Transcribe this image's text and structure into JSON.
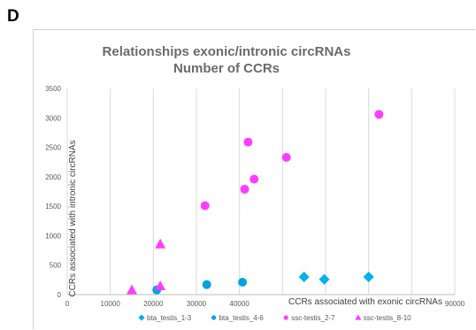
{
  "panel_label": "D",
  "chart_data": {
    "type": "scatter",
    "title": "Relationships exonic/intronic circRNAs",
    "subtitle": "Number of CCRs",
    "xlabel": "CCRs associated with exonic circRNAs",
    "ylabel": "CCRs associated with intronic circRNAs",
    "xlim": [
      0,
      90000
    ],
    "ylim": [
      0,
      3500
    ],
    "x_ticks": [
      "0",
      "10000",
      "20000",
      "30000",
      "40000",
      "90000"
    ],
    "y_ticks": [
      "0",
      "500",
      "1000",
      "1500",
      "2000",
      "2500",
      "3000",
      "3500"
    ],
    "x_tick_values": [
      0,
      10000,
      20000,
      30000,
      40000,
      90000
    ],
    "y_tick_values": [
      0,
      500,
      1000,
      1500,
      2000,
      2500,
      3000,
      3500
    ],
    "grid": "vertical",
    "legend_position": "bottom",
    "series": [
      {
        "name": "bta_testis_1-3",
        "marker": "diamond",
        "color": "#00b0f0",
        "points": [
          [
            55000,
            300
          ],
          [
            59700,
            260
          ],
          [
            70000,
            300
          ]
        ]
      },
      {
        "name": "bta_testis_4-6",
        "marker": "circle",
        "color": "#00a3e0",
        "points": [
          [
            20800,
            80
          ],
          [
            32400,
            170
          ],
          [
            40700,
            210
          ]
        ]
      },
      {
        "name": "ssc-testis_2-7",
        "marker": "circle",
        "color": "#ff3dff",
        "points": [
          [
            32000,
            1510
          ],
          [
            42000,
            2590
          ],
          [
            41200,
            1790
          ],
          [
            43400,
            1960
          ],
          [
            50900,
            2330
          ],
          [
            72400,
            3060
          ]
        ]
      },
      {
        "name": "ssc-testis_8-10",
        "marker": "triangle",
        "color": "#ff3dff",
        "points": [
          [
            15000,
            80
          ],
          [
            21600,
            150
          ],
          [
            21600,
            860
          ]
        ]
      }
    ]
  }
}
